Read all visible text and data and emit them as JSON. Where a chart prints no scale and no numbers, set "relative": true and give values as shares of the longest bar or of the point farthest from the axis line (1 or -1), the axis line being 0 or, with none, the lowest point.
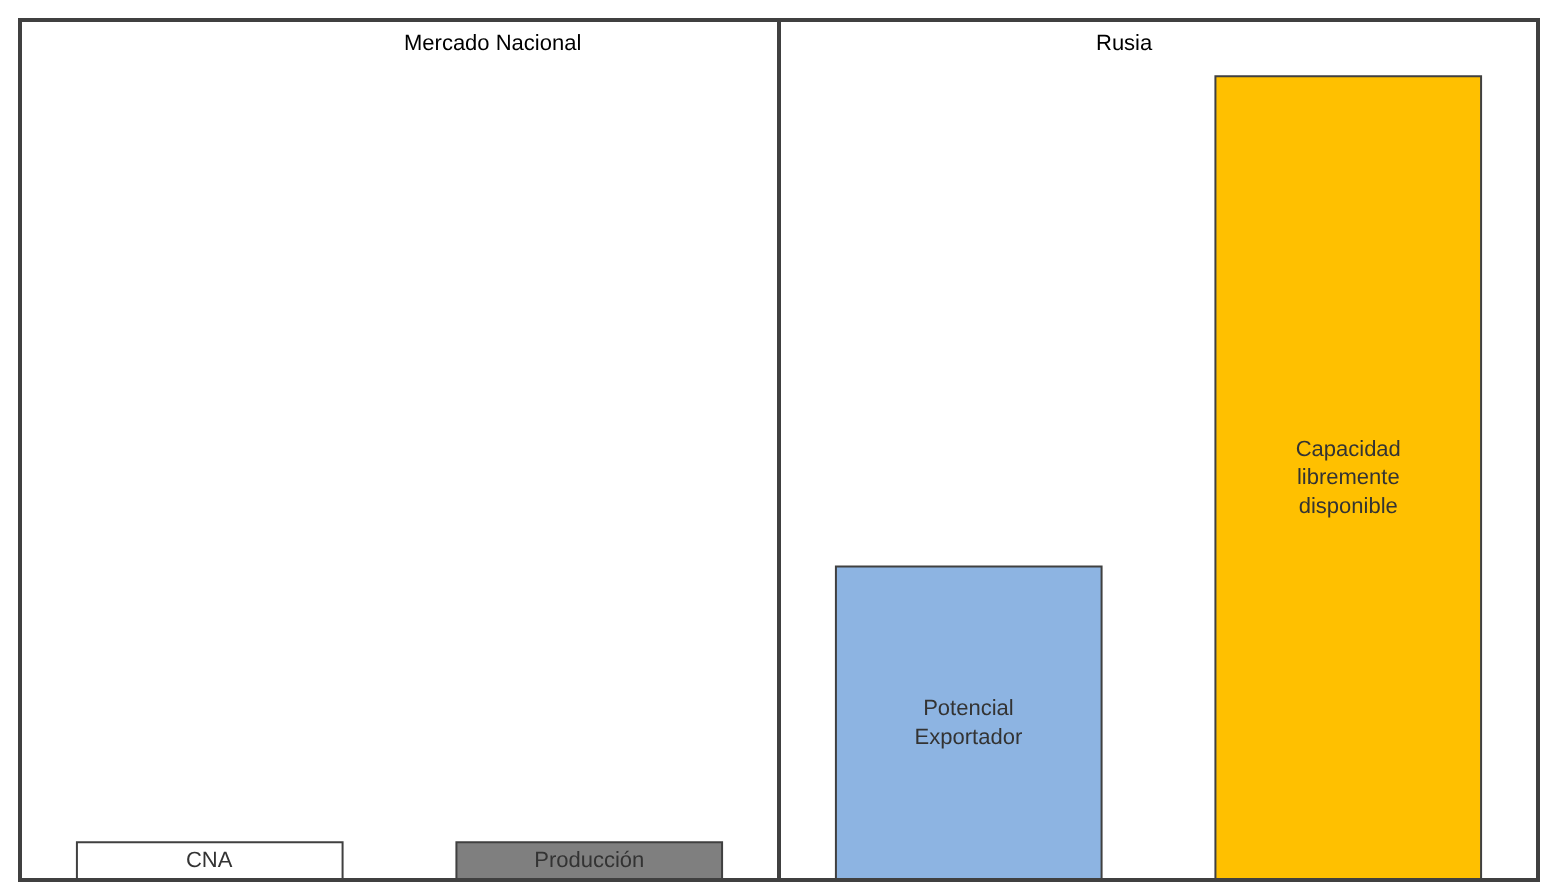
{
  "chart_data": {
    "type": "bar",
    "relative": true,
    "categories": [
      "CNA",
      "Producción",
      "Potencial Exportador",
      "Capacidad libremente disponible"
    ],
    "values": [
      0.047,
      0.047,
      0.39,
      1
    ],
    "colors": [
      "#ffffff",
      "#7f7f7f",
      "#8db4e2",
      "#ffc000"
    ],
    "annotations": [
      "Mercado Nacional",
      "Rusia"
    ],
    "tick_labels": false
  }
}
